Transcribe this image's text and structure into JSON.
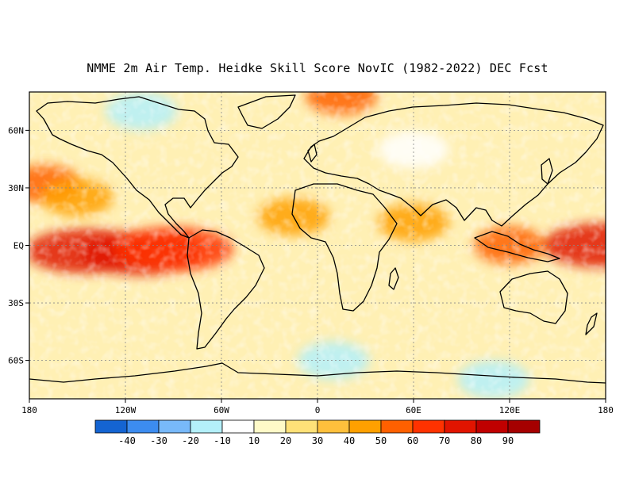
{
  "title": "NMME 2m Air Temp. Heidke Skill Score NovIC (1982-2022) DEC Fcst",
  "map": {
    "projection": "equirectangular",
    "lon_range": [
      -180,
      180
    ],
    "lat_range": [
      -80,
      80
    ],
    "x_ticks": [
      {
        "lon": -180,
        "label": "180"
      },
      {
        "lon": -120,
        "label": "120W"
      },
      {
        "lon": -60,
        "label": "60W"
      },
      {
        "lon": 0,
        "label": "0"
      },
      {
        "lon": 60,
        "label": "60E"
      },
      {
        "lon": 120,
        "label": "120E"
      },
      {
        "lon": 180,
        "label": "180"
      }
    ],
    "y_ticks": [
      {
        "lat": 60,
        "label": "60N"
      },
      {
        "lat": 30,
        "label": "30N"
      },
      {
        "lat": 0,
        "label": "EQ"
      },
      {
        "lat": -30,
        "label": "30S"
      },
      {
        "lat": -60,
        "label": "60S"
      }
    ],
    "grid": "dotted"
  },
  "colorbar": {
    "colors": [
      "#1464d2",
      "#3c8cf0",
      "#78b9fa",
      "#b4f0fa",
      "#ffffff",
      "#fffac8",
      "#ffe178",
      "#ffc03c",
      "#ffa000",
      "#ff6000",
      "#ff3200",
      "#e11400",
      "#c00000",
      "#a50000"
    ],
    "labels": [
      "-40",
      "-30",
      "-20",
      "-10",
      "10",
      "20",
      "30",
      "40",
      "50",
      "60",
      "70",
      "80",
      "90"
    ]
  },
  "chart_data": {
    "type": "heatmap",
    "title": "NMME 2m Air Temp. Heidke Skill Score NovIC (1982-2022) DEC Fcst",
    "variable": "Heidke Skill Score",
    "x_range": [
      -180,
      180
    ],
    "y_range": [
      -80,
      80
    ],
    "color_levels": [
      -40,
      -30,
      -20,
      -10,
      10,
      20,
      30,
      40,
      50,
      60,
      70,
      80,
      90
    ],
    "features": [
      {
        "lon": -145,
        "lat": -3,
        "value": 75
      },
      {
        "lon": -110,
        "lat": -4,
        "value": 70
      },
      {
        "lon": -90,
        "lat": -2,
        "value": 65
      },
      {
        "lon": -170,
        "lat": 32,
        "value": 55
      },
      {
        "lon": -150,
        "lat": 25,
        "value": 45
      },
      {
        "lon": 178,
        "lat": 0,
        "value": 70
      },
      {
        "lon": 120,
        "lat": 0,
        "value": 55
      },
      {
        "lon": 60,
        "lat": 12,
        "value": 45
      },
      {
        "lon": 15,
        "lat": 78,
        "value": 50
      },
      {
        "lon": -15,
        "lat": 15,
        "value": 40
      },
      {
        "lon": 10,
        "lat": -60,
        "value": -15
      },
      {
        "lon": -110,
        "lat": 70,
        "value": -15
      },
      {
        "lon": 60,
        "lat": 50,
        "value": -10
      },
      {
        "lon": 110,
        "lat": -70,
        "value": -15
      }
    ]
  }
}
